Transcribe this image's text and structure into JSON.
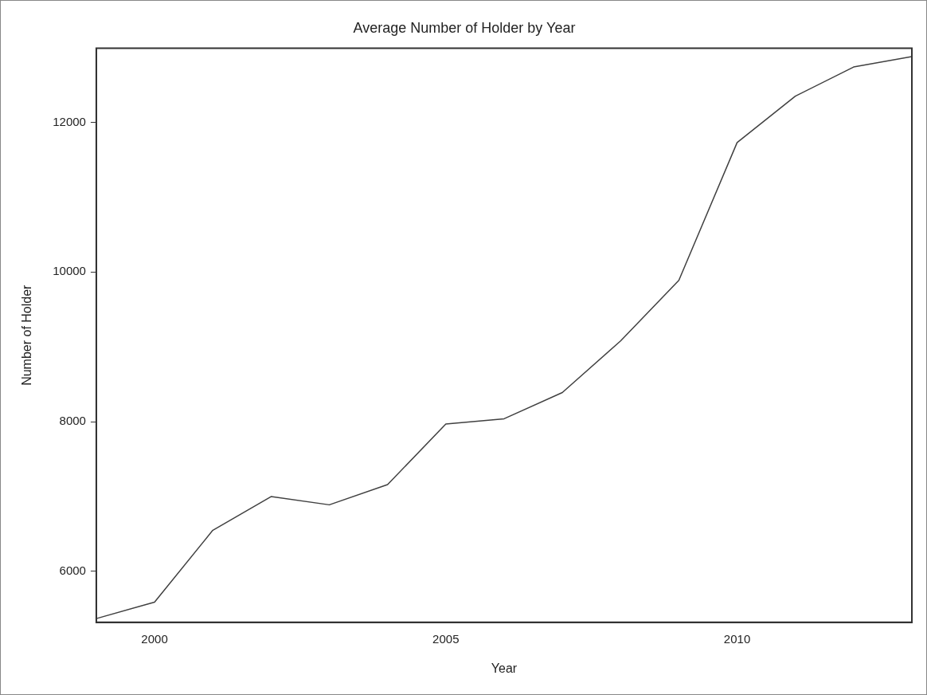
{
  "chart_data": {
    "type": "line",
    "title": "Average Number of Holder by Year",
    "xlabel": "Year",
    "ylabel": "Number of Holder",
    "x": [
      1999,
      2000,
      2001,
      2002,
      2003,
      2004,
      2005,
      2006,
      2007,
      2008,
      2009,
      2010,
      2011,
      2012,
      2013
    ],
    "series": [
      {
        "color": "#404040",
        "values": [
          5370,
          5590,
          6550,
          7000,
          6890,
          7160,
          7970,
          8040,
          8390,
          9080,
          9890,
          11730,
          12350,
          12740,
          12880
        ]
      }
    ],
    "xlim": [
      1999,
      2013
    ],
    "xticks": [
      2000,
      2005,
      2010
    ],
    "ylim": [
      5320,
      12990
    ],
    "yticks": [
      6000,
      8000,
      10000,
      12000
    ],
    "grid": false,
    "legend": false,
    "marker": "none",
    "line_style": "solid"
  }
}
